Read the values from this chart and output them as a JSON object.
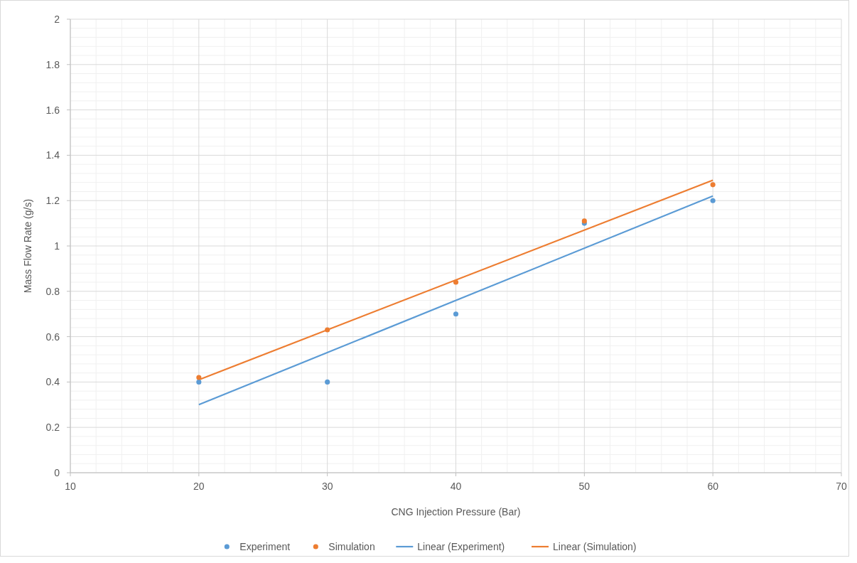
{
  "chart_data": {
    "type": "scatter",
    "xlabel": "CNG Injection Pressure (Bar)",
    "ylabel": "Mass Flow Rate (g/s)",
    "xlim": [
      10,
      70
    ],
    "xticks": [
      10,
      20,
      30,
      40,
      50,
      60,
      70
    ],
    "ylim": [
      0,
      2
    ],
    "yticks": [
      0,
      {
        "value": 0.2,
        "label": "0.2"
      },
      {
        "value": 0.4,
        "label": "0.4"
      },
      {
        "value": 0.6,
        "label": "0.6"
      },
      {
        "value": 0.8,
        "label": "0.8"
      },
      1,
      {
        "value": 1.2,
        "label": "1.2"
      },
      {
        "value": 1.4,
        "label": "1.4"
      },
      {
        "value": 1.6,
        "label": "1.6"
      },
      {
        "value": 1.8,
        "label": "1.8"
      },
      2
    ],
    "grid": true,
    "legend": "bottom",
    "series": [
      {
        "name": "Experiment",
        "marker": "circle",
        "color": "#5b9bd5",
        "x": [
          20,
          30,
          40,
          50,
          60
        ],
        "values": [
          0.4,
          0.4,
          0.7,
          1.1,
          1.2
        ]
      },
      {
        "name": "Simulation",
        "marker": "circle",
        "color": "#ed7d31",
        "x": [
          20,
          30,
          40,
          50,
          60
        ],
        "values": [
          0.42,
          0.63,
          0.84,
          1.11,
          1.27
        ]
      },
      {
        "name": "Linear (Experiment)",
        "type": "line",
        "marker": "none",
        "color": "#5b9bd5",
        "x": [
          20,
          60
        ],
        "values": [
          0.3,
          1.22
        ]
      },
      {
        "name": "Linear (Simulation)",
        "type": "line",
        "marker": "none",
        "color": "#ed7d31",
        "x": [
          20,
          60
        ],
        "values": [
          0.41,
          1.29
        ]
      }
    ]
  }
}
